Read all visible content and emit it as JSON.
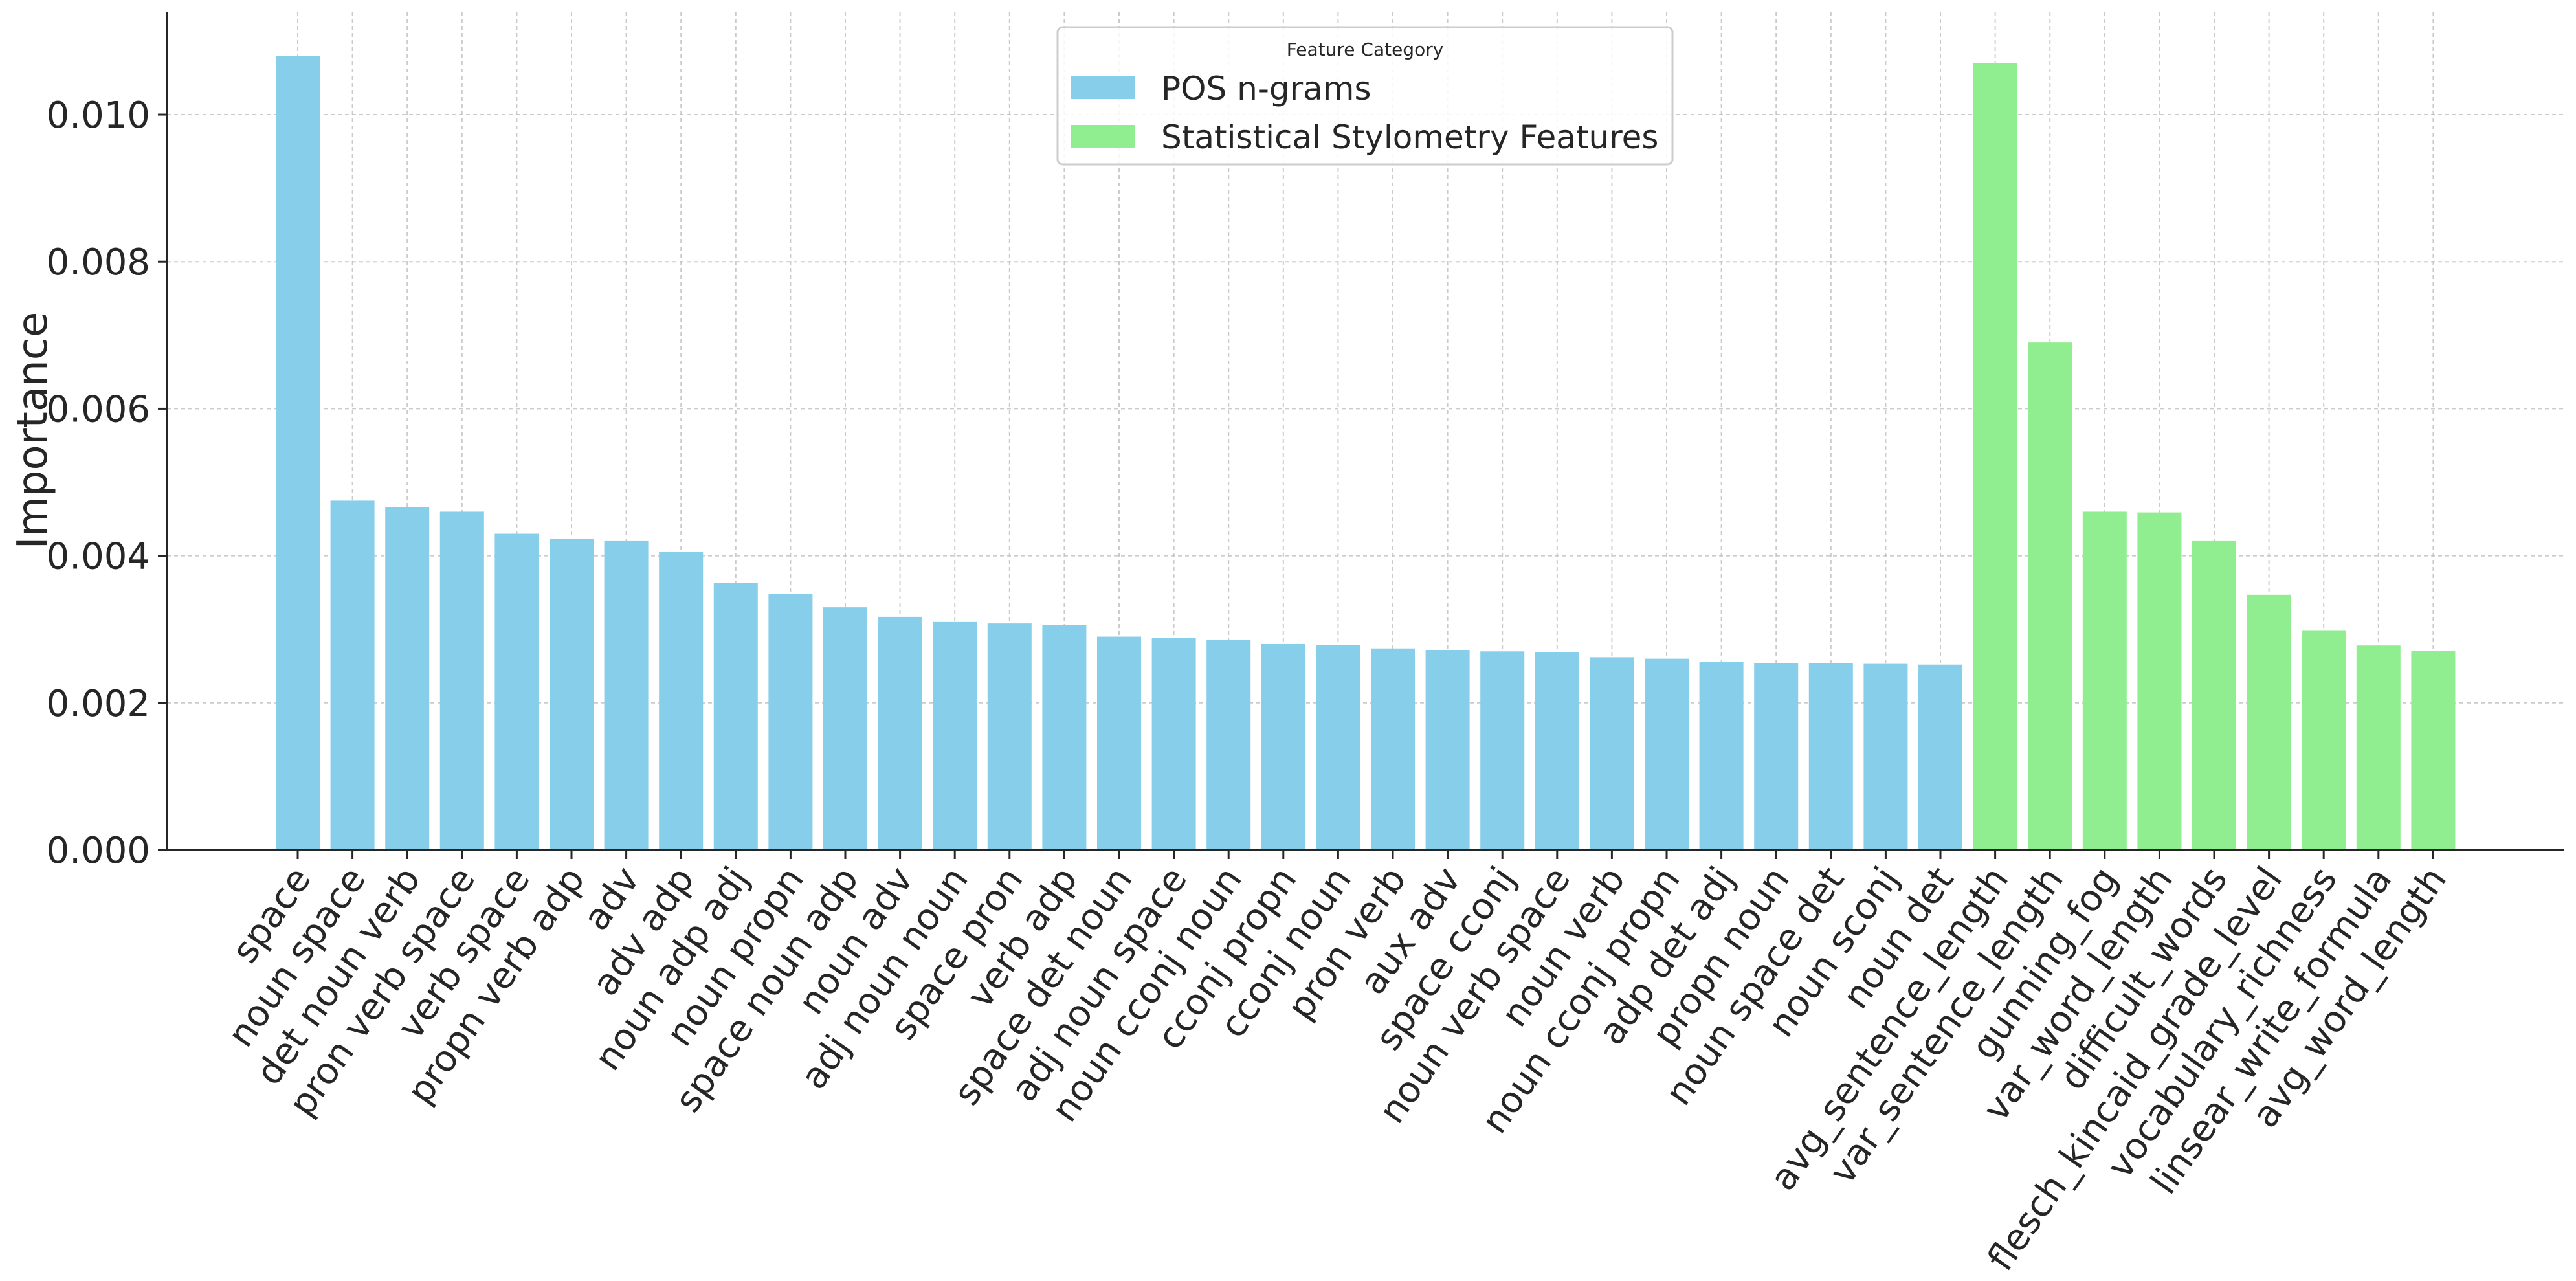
{
  "chart_data": {
    "type": "bar",
    "xlabel": "",
    "ylabel": "Importance",
    "ylim": [
      0,
      0.0114
    ],
    "yticks": [
      "0.000",
      "0.002",
      "0.004",
      "0.006",
      "0.008",
      "0.010"
    ],
    "yticks_values": [
      0,
      0.002,
      0.004,
      0.006,
      0.008,
      0.01
    ],
    "grid": true,
    "legend": {
      "title": "Feature Category",
      "placement": "top-center",
      "entries": [
        {
          "label": "POS n-grams",
          "color": "#87CEEB"
        },
        {
          "label": "Statistical Stylometry Features",
          "color": "#90EE90"
        }
      ]
    },
    "categories": [
      "space",
      "noun space",
      "det noun verb",
      "pron verb space",
      "verb space",
      "propn verb adp",
      "adv",
      "adv adp",
      "noun adp adj",
      "noun propn",
      "space noun adp",
      "noun adv",
      "adj noun noun",
      "space pron",
      "verb adp",
      "space det noun",
      "adj noun space",
      "noun cconj noun",
      "cconj propn",
      "cconj noun",
      "pron verb",
      "aux adv",
      "space cconj",
      "noun verb space",
      "noun verb",
      "noun cconj propn",
      "adp det adj",
      "propn noun",
      "noun space det",
      "noun sconj",
      "noun det",
      "avg_sentence_length",
      "var_sentence_length",
      "gunning_fog",
      "var_word_length",
      "difficult_words",
      "flesch_kincaid_grade_level",
      "vocabulary_richness",
      "linsear_write_formula",
      "avg_word_length"
    ],
    "values": [
      0.0108,
      0.00475,
      0.00466,
      0.0046,
      0.0043,
      0.00423,
      0.0042,
      0.00405,
      0.00363,
      0.00348,
      0.0033,
      0.00317,
      0.0031,
      0.00308,
      0.00306,
      0.0029,
      0.00288,
      0.00286,
      0.0028,
      0.00279,
      0.00274,
      0.00272,
      0.0027,
      0.00269,
      0.00262,
      0.0026,
      0.00256,
      0.00254,
      0.00254,
      0.00253,
      0.00252,
      0.0107,
      0.0069,
      0.0046,
      0.00459,
      0.0042,
      0.00347,
      0.00298,
      0.00278,
      0.00271
    ],
    "series_index": [
      0,
      0,
      0,
      0,
      0,
      0,
      0,
      0,
      0,
      0,
      0,
      0,
      0,
      0,
      0,
      0,
      0,
      0,
      0,
      0,
      0,
      0,
      0,
      0,
      0,
      0,
      0,
      0,
      0,
      0,
      0,
      1,
      1,
      1,
      1,
      1,
      1,
      1,
      1,
      1
    ]
  }
}
